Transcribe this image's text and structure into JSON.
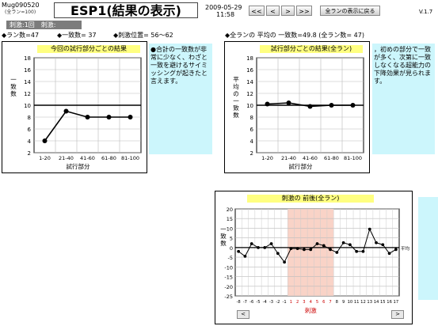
{
  "header": {
    "app_id": "Mug090520",
    "app_sub": "(全ラン=100)",
    "title": "ESP1(結果の表示)",
    "date": "2009-05-29",
    "time": "11:58",
    "nav": {
      "first": "<<",
      "prev": "<",
      "next": ">",
      "last": ">>"
    },
    "show_all_button": "全ランの表示に戻る",
    "version": "V.1.7"
  },
  "stim_bar": "刺激:1回　刺激:",
  "stats_left": {
    "runs": "◆ラン数=47",
    "matches": "◆一致数= 37",
    "stim_pos": "◆刺激位置= 56～62"
  },
  "stats_right": "◆全ランの 平均の 一致数=49.8 (全ラン数= 47)",
  "left_chart": {
    "header": "今回の試行部分ごとの結果",
    "note": "●合計の一致数が非常に少なく、わざと一致を避けるサイミッシングが起きたと言えます。"
  },
  "right_chart": {
    "header": "試行部分ごとの結果(全ラン)",
    "note": "，初めの部分で一致が多く、次第に一致しなくなる超能力の下降効果が見られます。"
  },
  "bottom_chart": {
    "header": "刺激の 前後(全ラン)",
    "nav_prev": "<",
    "nav_next": ">"
  },
  "chart_data": [
    {
      "type": "line",
      "title": "今回の試行部分ごとの結果",
      "xlabel": "試行部分",
      "ylabel": "一致数",
      "categories": [
        "1-20",
        "21-40",
        "41-60",
        "61-80",
        "81-100"
      ],
      "values": [
        4,
        9,
        8,
        8,
        8
      ],
      "ylim": [
        2,
        18
      ],
      "yticks": [
        2,
        4,
        6,
        8,
        10,
        12,
        14,
        16,
        18
      ],
      "reference_line": 10,
      "grid": true
    },
    {
      "type": "line",
      "title": "試行部分ごとの結果(全ラン)",
      "xlabel": "試行部分",
      "ylabel": "平均の一致数",
      "categories": [
        "1-20",
        "21-40",
        "41-60",
        "61-80",
        "81-100"
      ],
      "values": [
        10.2,
        10.4,
        9.8,
        10.0,
        10.0
      ],
      "ylim": [
        2,
        18
      ],
      "yticks": [
        2,
        4,
        6,
        8,
        10,
        12,
        14,
        16,
        18
      ],
      "reference_line": 10,
      "grid": true
    },
    {
      "type": "line",
      "title": "刺激の 前後(全ラン)",
      "xlabel": "刺激",
      "ylabel": "一致数",
      "x": [
        -8,
        -7,
        -6,
        -5,
        -4,
        -3,
        -2,
        -1,
        1,
        2,
        3,
        4,
        5,
        6,
        7,
        8,
        9,
        10,
        11,
        12,
        13,
        14,
        15,
        16,
        17
      ],
      "values": [
        -2,
        -4.5,
        2,
        0,
        0,
        2,
        -3,
        -7.5,
        -0.5,
        -0.5,
        -1,
        -1,
        2,
        1,
        -1,
        -2.5,
        2.5,
        1.5,
        -2,
        -2,
        9.5,
        2.5,
        1.5,
        -3,
        -1
      ],
      "ylim": [
        -25,
        20
      ],
      "yticks": [
        20,
        15,
        10,
        5,
        0,
        -5,
        -10,
        -15,
        -20,
        -25
      ],
      "reference_line": 0,
      "reference_label": "平均",
      "highlight_range": [
        1,
        7
      ],
      "grid": true
    }
  ]
}
